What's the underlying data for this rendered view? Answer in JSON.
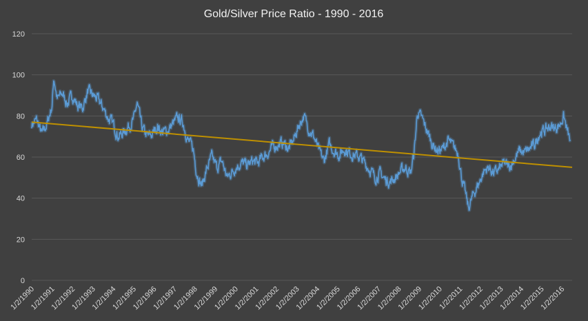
{
  "chart_data": {
    "type": "line",
    "title": "Gold/Silver Price Ratio - 1990 - 2016",
    "xlabel": "",
    "ylabel": "",
    "ylim": [
      0,
      120
    ],
    "yticks": [
      0,
      20,
      40,
      60,
      80,
      100,
      120
    ],
    "grid": true,
    "legend": "none",
    "x_tick_labels": [
      "1/2/1990",
      "1/2/1991",
      "1/2/1992",
      "1/2/1993",
      "1/2/1994",
      "1/2/1995",
      "1/2/1996",
      "1/2/1997",
      "1/2/1998",
      "1/2/1999",
      "1/2/2000",
      "1/2/2001",
      "1/2/2002",
      "1/2/2003",
      "1/2/2004",
      "1/2/2005",
      "1/2/2006",
      "1/2/2007",
      "1/2/2008",
      "1/2/2009",
      "1/2/2010",
      "1/2/2011",
      "1/2/2012",
      "1/2/2013",
      "1/2/2014",
      "1/2/2015",
      "1/2/2016"
    ],
    "colors": {
      "series": "#5b9bd5",
      "trend": "#bf9000",
      "background": "#404040",
      "grid": "#595959"
    },
    "series": [
      {
        "x": [
          "1990-01",
          "1990-04",
          "1990-07",
          "1990-10",
          "1991-01",
          "1991-02",
          "1991-04",
          "1991-07",
          "1991-10",
          "1992-01",
          "1992-04",
          "1992-07",
          "1992-10",
          "1993-01",
          "1993-04",
          "1993-07",
          "1993-10",
          "1994-01",
          "1994-04",
          "1994-07",
          "1994-10",
          "1995-01",
          "1995-03",
          "1995-06",
          "1995-09",
          "1995-12",
          "1996-03",
          "1996-06",
          "1996-09",
          "1996-12",
          "1997-03",
          "1997-06",
          "1997-09",
          "1997-12",
          "1998-02",
          "1998-05",
          "1998-08",
          "1998-11",
          "1999-02",
          "1999-05",
          "1999-08",
          "1999-11",
          "2000-02",
          "2000-05",
          "2000-08",
          "2000-11",
          "2001-02",
          "2001-05",
          "2001-08",
          "2001-11",
          "2002-02",
          "2002-05",
          "2002-08",
          "2002-11",
          "2003-02",
          "2003-05",
          "2003-08",
          "2003-11",
          "2004-02",
          "2004-05",
          "2004-08",
          "2004-11",
          "2005-02",
          "2005-05",
          "2005-08",
          "2005-11",
          "2006-02",
          "2006-05",
          "2006-08",
          "2006-11",
          "2007-02",
          "2007-05",
          "2007-08",
          "2007-11",
          "2008-02",
          "2008-05",
          "2008-08",
          "2008-10",
          "2008-12",
          "2009-03",
          "2009-06",
          "2009-09",
          "2009-12",
          "2010-03",
          "2010-06",
          "2010-09",
          "2010-12",
          "2011-02",
          "2011-04",
          "2011-06",
          "2011-09",
          "2011-12",
          "2012-03",
          "2012-06",
          "2012-09",
          "2012-12",
          "2013-03",
          "2013-06",
          "2013-09",
          "2013-12",
          "2014-03",
          "2014-06",
          "2014-09",
          "2014-12",
          "2015-03",
          "2015-06",
          "2015-09",
          "2015-12",
          "2016-02",
          "2016-04",
          "2016-06"
        ],
        "values": [
          76,
          78,
          71,
          76,
          85,
          99,
          88,
          91,
          86,
          90,
          85,
          84,
          92,
          90,
          88,
          84,
          79,
          76,
          70,
          72,
          75,
          78,
          86,
          74,
          70,
          71,
          75,
          72,
          73,
          76,
          79,
          77,
          68,
          64,
          53,
          46,
          54,
          60,
          55,
          58,
          50,
          53,
          56,
          57,
          56,
          58,
          57,
          60,
          62,
          65,
          66,
          67,
          64,
          68,
          75,
          80,
          74,
          70,
          63,
          58,
          66,
          63,
          61,
          64,
          62,
          61,
          60,
          57,
          54,
          50,
          52,
          49,
          48,
          50,
          53,
          55,
          52,
          62,
          82,
          78,
          72,
          66,
          63,
          64,
          68,
          65,
          62,
          50,
          43,
          35,
          42,
          47,
          53,
          55,
          52,
          54,
          57,
          55,
          59,
          63,
          62,
          64,
          66,
          72,
          73,
          75,
          74,
          76,
          80,
          73,
          67
        ]
      },
      {
        "values_at_ends": [
          77,
          55
        ]
      }
    ]
  }
}
